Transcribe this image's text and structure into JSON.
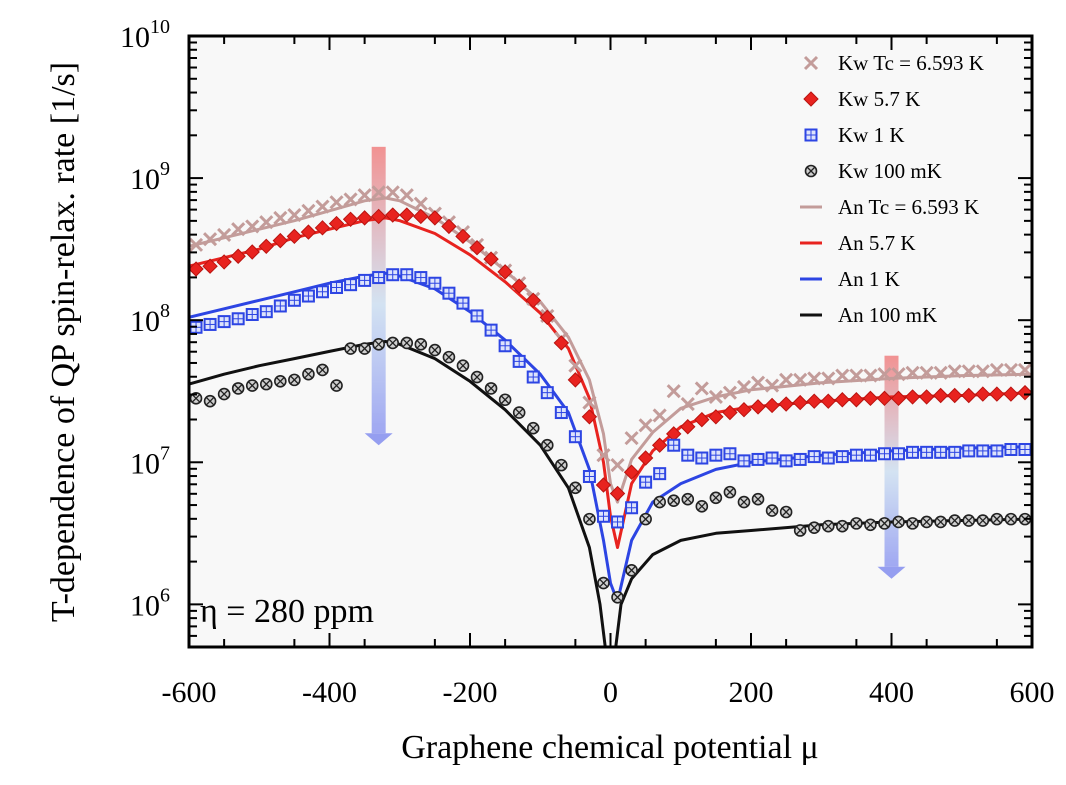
{
  "chart_data": {
    "type": "line",
    "title": "",
    "xlabel": "Graphene chemical potential μ",
    "ylabel": "T-dependence of QP spin-relax. rate [1/s]",
    "xlim": [
      -600,
      600
    ],
    "ylim_log10": [
      5.7,
      10
    ],
    "yscale": "log",
    "x_ticks": [
      -600,
      -400,
      -200,
      0,
      200,
      400,
      600
    ],
    "x_tick_labels": [
      "-600",
      "-400",
      "-200",
      "0",
      "200",
      "400",
      "600"
    ],
    "y_ticks_log10": [
      6,
      7,
      8,
      9,
      10
    ],
    "y_tick_base": "10",
    "y_tick_exponents": [
      "6",
      "7",
      "8",
      "9",
      "10"
    ],
    "legend_position": "top-right",
    "annotation": {
      "text": "η = 280 ppm",
      "position": "bottom-left"
    },
    "arrows": [
      {
        "name": "decreasing-temperature-arrow-left",
        "x": -330,
        "from_log10": 9.22,
        "to_log10": 7.12
      },
      {
        "name": "decreasing-temperature-arrow-right",
        "x": 400,
        "from_log10": 7.75,
        "to_log10": 6.18
      }
    ],
    "series": [
      {
        "name": "Kw Tc = 6.593 K",
        "kind": "markers",
        "marker": "x",
        "color": "#c39c9a",
        "x": [
          -590,
          -570,
          -550,
          -530,
          -510,
          -490,
          -470,
          -450,
          -430,
          -410,
          -390,
          -370,
          -350,
          -330,
          -310,
          -290,
          -270,
          -250,
          -230,
          -210,
          -190,
          -170,
          -150,
          -130,
          -110,
          -90,
          -70,
          -50,
          -30,
          -10,
          10,
          30,
          50,
          70,
          90,
          110,
          130,
          150,
          170,
          190,
          210,
          230,
          250,
          270,
          290,
          310,
          330,
          350,
          370,
          390,
          410,
          430,
          450,
          470,
          490,
          510,
          530,
          550,
          570,
          590
        ],
        "y_log10": [
          8.53,
          8.57,
          8.6,
          8.64,
          8.66,
          8.69,
          8.72,
          8.74,
          8.77,
          8.8,
          8.83,
          8.85,
          8.88,
          8.9,
          8.9,
          8.88,
          8.82,
          8.75,
          8.69,
          8.62,
          8.53,
          8.44,
          8.35,
          8.26,
          8.15,
          8.03,
          7.87,
          7.68,
          7.42,
          7.05,
          6.98,
          7.17,
          7.26,
          7.33,
          7.5,
          7.41,
          7.52,
          7.46,
          7.49,
          7.53,
          7.56,
          7.54,
          7.58,
          7.58,
          7.59,
          7.59,
          7.61,
          7.61,
          7.61,
          7.62,
          7.62,
          7.63,
          7.63,
          7.63,
          7.64,
          7.64,
          7.64,
          7.65,
          7.65,
          7.65
        ]
      },
      {
        "name": "Kw 5.7 K",
        "kind": "markers",
        "marker": "diamond",
        "color": "#e8231f",
        "x": [
          -590,
          -570,
          -550,
          -530,
          -510,
          -490,
          -470,
          -450,
          -430,
          -410,
          -390,
          -370,
          -350,
          -330,
          -310,
          -290,
          -270,
          -250,
          -230,
          -210,
          -190,
          -170,
          -150,
          -130,
          -110,
          -90,
          -70,
          -50,
          -30,
          -10,
          10,
          30,
          50,
          70,
          90,
          110,
          130,
          150,
          170,
          190,
          210,
          230,
          250,
          270,
          290,
          310,
          330,
          350,
          370,
          390,
          410,
          430,
          450,
          470,
          490,
          510,
          530,
          550,
          570,
          590
        ],
        "y_log10": [
          8.36,
          8.38,
          8.41,
          8.45,
          8.48,
          8.52,
          8.56,
          8.59,
          8.62,
          8.65,
          8.68,
          8.71,
          8.72,
          8.73,
          8.74,
          8.74,
          8.73,
          8.72,
          8.66,
          8.59,
          8.51,
          8.43,
          8.34,
          8.24,
          8.14,
          8.02,
          7.84,
          7.58,
          7.32,
          6.84,
          6.78,
          6.93,
          7.03,
          7.12,
          7.2,
          7.25,
          7.3,
          7.32,
          7.35,
          7.37,
          7.39,
          7.4,
          7.41,
          7.42,
          7.43,
          7.43,
          7.44,
          7.44,
          7.45,
          7.45,
          7.45,
          7.46,
          7.46,
          7.47,
          7.47,
          7.47,
          7.48,
          7.48,
          7.48,
          7.49
        ]
      },
      {
        "name": "Kw 1 K",
        "kind": "markers",
        "marker": "square",
        "color": "#2d45e3",
        "x": [
          -590,
          -570,
          -550,
          -530,
          -510,
          -490,
          -470,
          -450,
          -430,
          -410,
          -390,
          -370,
          -350,
          -330,
          -310,
          -290,
          -270,
          -250,
          -230,
          -210,
          -190,
          -170,
          -150,
          -130,
          -110,
          -90,
          -70,
          -50,
          -30,
          -10,
          10,
          30,
          50,
          70,
          90,
          110,
          130,
          150,
          170,
          190,
          210,
          230,
          250,
          270,
          290,
          310,
          330,
          350,
          370,
          390,
          410,
          430,
          450,
          470,
          490,
          510,
          530,
          550,
          570,
          590
        ],
        "y_log10": [
          7.95,
          7.97,
          7.99,
          8.01,
          8.04,
          8.06,
          8.1,
          8.14,
          8.17,
          8.2,
          8.23,
          8.25,
          8.28,
          8.3,
          8.32,
          8.32,
          8.3,
          8.26,
          8.19,
          8.12,
          8.03,
          7.93,
          7.82,
          7.71,
          7.6,
          7.49,
          7.35,
          7.18,
          6.9,
          6.62,
          6.58,
          6.68,
          6.86,
          6.92,
          7.12,
          7.05,
          7.03,
          7.05,
          7.06,
          7.01,
          7.02,
          7.03,
          7.01,
          7.02,
          7.04,
          7.03,
          7.04,
          7.05,
          7.05,
          7.06,
          7.06,
          7.07,
          7.07,
          7.07,
          7.07,
          7.08,
          7.08,
          7.08,
          7.09,
          7.09
        ]
      },
      {
        "name": "Kw 100 mK",
        "kind": "markers",
        "marker": "circle-x",
        "color": "#222222",
        "x": [
          -590,
          -570,
          -550,
          -530,
          -510,
          -490,
          -470,
          -450,
          -430,
          -410,
          -390,
          -370,
          -350,
          -330,
          -310,
          -290,
          -270,
          -250,
          -230,
          -210,
          -190,
          -170,
          -150,
          -130,
          -110,
          -90,
          -70,
          -50,
          -30,
          -10,
          10,
          30,
          50,
          70,
          90,
          110,
          130,
          150,
          170,
          190,
          210,
          230,
          250,
          270,
          290,
          310,
          330,
          350,
          370,
          390,
          410,
          430,
          450,
          470,
          490,
          510,
          530,
          550,
          570,
          590
        ],
        "y_log10": [
          7.45,
          7.43,
          7.48,
          7.52,
          7.54,
          7.55,
          7.57,
          7.58,
          7.62,
          7.65,
          7.54,
          7.8,
          7.8,
          7.83,
          7.84,
          7.84,
          7.83,
          7.79,
          7.74,
          7.68,
          7.6,
          7.52,
          7.44,
          7.35,
          7.24,
          7.12,
          6.98,
          6.82,
          6.6,
          6.15,
          6.05,
          6.24,
          6.6,
          6.72,
          6.73,
          6.74,
          6.69,
          6.75,
          6.79,
          6.72,
          6.74,
          6.66,
          6.65,
          6.52,
          6.54,
          6.55,
          6.55,
          6.57,
          6.56,
          6.57,
          6.58,
          6.57,
          6.58,
          6.58,
          6.59,
          6.59,
          6.59,
          6.6,
          6.6,
          6.6
        ]
      },
      {
        "name": "An Tc = 6.593 K",
        "kind": "line",
        "color": "#c39c9a",
        "x": [
          -600,
          -550,
          -500,
          -450,
          -400,
          -350,
          -320,
          -300,
          -250,
          -200,
          -150,
          -100,
          -60,
          -30,
          -10,
          0,
          10,
          30,
          60,
          100,
          150,
          200,
          300,
          400,
          500,
          600
        ],
        "y_log10": [
          8.52,
          8.58,
          8.64,
          8.7,
          8.77,
          8.84,
          8.86,
          8.84,
          8.72,
          8.55,
          8.35,
          8.13,
          7.88,
          7.58,
          7.2,
          6.85,
          6.72,
          7.02,
          7.21,
          7.38,
          7.46,
          7.51,
          7.56,
          7.59,
          7.61,
          7.62
        ]
      },
      {
        "name": "An 5.7 K",
        "kind": "line",
        "color": "#e8231f",
        "x": [
          -600,
          -550,
          -500,
          -450,
          -400,
          -350,
          -320,
          -300,
          -250,
          -200,
          -150,
          -100,
          -60,
          -30,
          -10,
          0,
          10,
          30,
          60,
          100,
          150,
          200,
          300,
          400,
          500,
          600
        ],
        "y_log10": [
          8.38,
          8.44,
          8.5,
          8.58,
          8.64,
          8.7,
          8.72,
          8.7,
          8.61,
          8.46,
          8.27,
          8.05,
          7.8,
          7.45,
          7.0,
          6.62,
          6.4,
          6.85,
          7.08,
          7.25,
          7.35,
          7.39,
          7.43,
          7.46,
          7.47,
          7.49
        ]
      },
      {
        "name": "An 1 K",
        "kind": "line",
        "color": "#2d45e3",
        "x": [
          -600,
          -550,
          -500,
          -450,
          -400,
          -350,
          -320,
          -300,
          -250,
          -200,
          -150,
          -100,
          -60,
          -30,
          -10,
          0,
          10,
          30,
          60,
          100,
          150,
          200,
          300,
          400,
          500,
          600
        ],
        "y_log10": [
          8.02,
          8.08,
          8.14,
          8.2,
          8.26,
          8.31,
          8.33,
          8.31,
          8.22,
          8.06,
          7.86,
          7.62,
          7.35,
          6.95,
          6.45,
          6.15,
          6.02,
          6.45,
          6.72,
          6.85,
          6.95,
          7.0,
          7.05,
          7.08,
          7.1,
          7.11
        ]
      },
      {
        "name": "An 100 mK",
        "kind": "line",
        "color": "#111111",
        "x": [
          -600,
          -550,
          -500,
          -450,
          -400,
          -350,
          -320,
          -300,
          -250,
          -200,
          -150,
          -100,
          -60,
          -30,
          -15,
          -5,
          5,
          15,
          30,
          60,
          100,
          150,
          200,
          300,
          400,
          500,
          600
        ],
        "y_log10": [
          7.55,
          7.62,
          7.68,
          7.73,
          7.78,
          7.83,
          7.85,
          7.83,
          7.73,
          7.57,
          7.37,
          7.12,
          6.82,
          6.4,
          6.0,
          5.6,
          5.6,
          6.0,
          6.18,
          6.35,
          6.45,
          6.5,
          6.52,
          6.56,
          6.58,
          6.59,
          6.6
        ]
      }
    ]
  }
}
